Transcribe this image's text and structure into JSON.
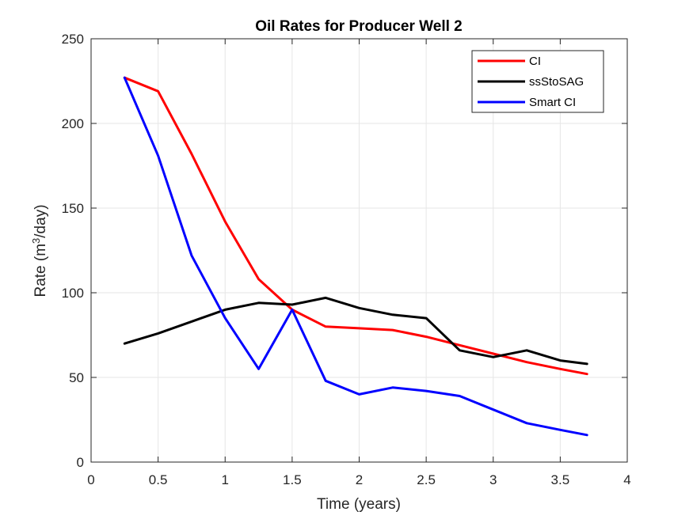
{
  "chart_data": {
    "type": "line",
    "title": "Oil Rates for Producer Well 2",
    "xlabel": "Time (years)",
    "ylabel": {
      "prefix": "Rate (m",
      "superscript": "3",
      "suffix": "/day)"
    },
    "xlim": [
      0,
      4
    ],
    "ylim": [
      0,
      250
    ],
    "xticks": [
      0,
      0.5,
      1,
      1.5,
      2,
      2.5,
      3,
      3.5,
      4
    ],
    "xtick_labels": [
      "0",
      "0.5",
      "1",
      "1.5",
      "2",
      "2.5",
      "3",
      "3.5",
      "4"
    ],
    "yticks": [
      0,
      50,
      100,
      150,
      200,
      250
    ],
    "ytick_labels": [
      "0",
      "50",
      "100",
      "150",
      "200",
      "250"
    ],
    "grid": true,
    "legend_position": "top-right",
    "series": [
      {
        "name": "CI",
        "color": "#ff0000",
        "x": [
          0.25,
          0.5,
          0.75,
          1.0,
          1.25,
          1.5,
          1.75,
          2.0,
          2.25,
          2.5,
          2.75,
          3.0,
          3.25,
          3.5,
          3.7
        ],
        "y": [
          227,
          219,
          182,
          142,
          108,
          90,
          80,
          79,
          78,
          74,
          69,
          64,
          59,
          55,
          52
        ]
      },
      {
        "name": "ssStoSAG",
        "color": "#000000",
        "x": [
          0.25,
          0.5,
          0.75,
          1.0,
          1.25,
          1.5,
          1.75,
          2.0,
          2.25,
          2.5,
          2.75,
          3.0,
          3.25,
          3.5,
          3.7
        ],
        "y": [
          70,
          76,
          83,
          90,
          94,
          93,
          97,
          91,
          87,
          85,
          66,
          62,
          66,
          60,
          58
        ]
      },
      {
        "name": "Smart CI",
        "color": "#0000ff",
        "x": [
          0.25,
          0.5,
          0.75,
          1.0,
          1.25,
          1.5,
          1.75,
          2.0,
          2.25,
          2.5,
          2.75,
          3.0,
          3.25,
          3.5,
          3.7
        ],
        "y": [
          227,
          181,
          122,
          85,
          55,
          90,
          48,
          40,
          44,
          42,
          39,
          31,
          23,
          19,
          16
        ]
      }
    ]
  }
}
